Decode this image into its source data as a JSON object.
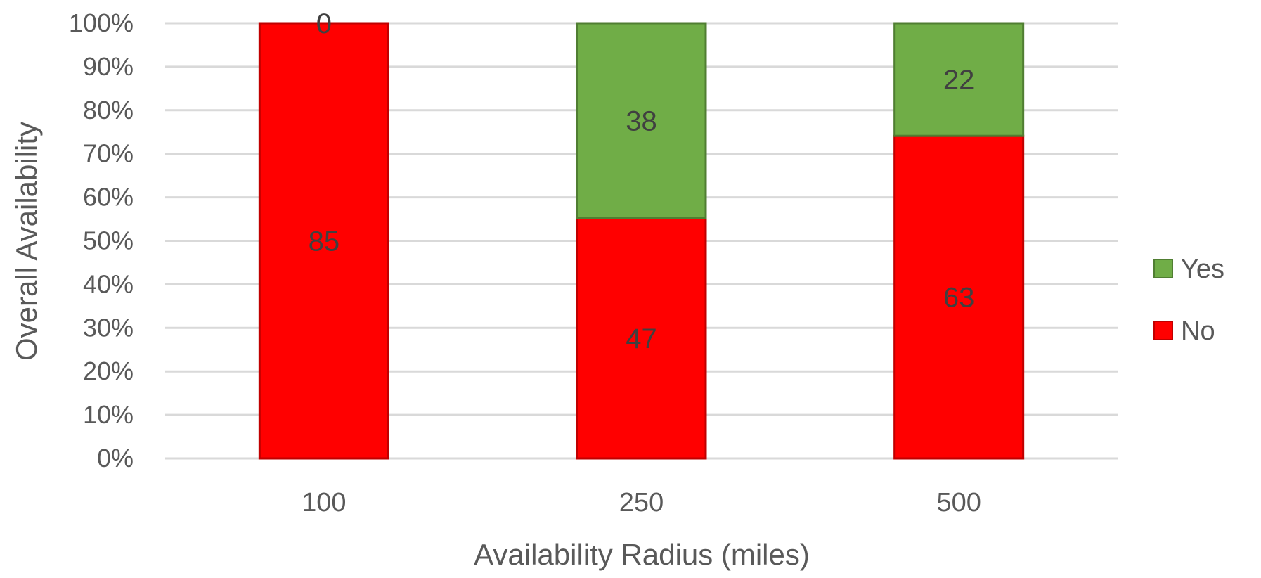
{
  "chart_data": {
    "type": "bar",
    "stacked": "percent",
    "categories": [
      "100",
      "250",
      "500"
    ],
    "series": [
      {
        "name": "No",
        "values": [
          85,
          47,
          63
        ],
        "color": "#FF0000",
        "border": "#C00000"
      },
      {
        "name": "Yes",
        "values": [
          0,
          38,
          22
        ],
        "color": "#70AD47",
        "border": "#507E32"
      }
    ],
    "xlabel": "Availability Radius (miles)",
    "ylabel": "Overall Availability",
    "ylim": [
      0,
      100
    ],
    "yticks": [
      "0%",
      "10%",
      "20%",
      "30%",
      "40%",
      "50%",
      "60%",
      "70%",
      "80%",
      "90%",
      "100%"
    ],
    "grid": true,
    "legend_position": "right",
    "legend_order": [
      "Yes",
      "No"
    ]
  }
}
